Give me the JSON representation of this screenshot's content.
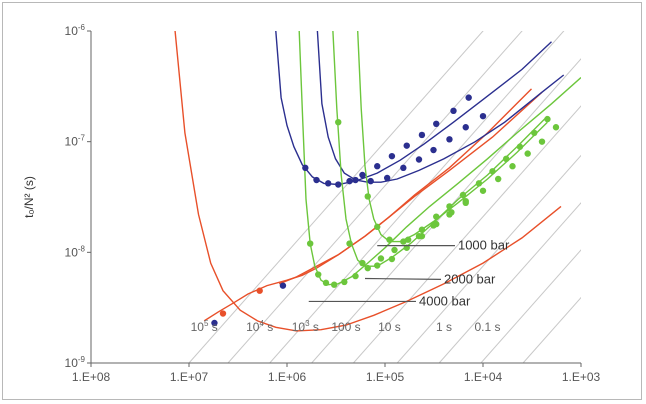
{
  "chart_data": {
    "type": "line",
    "ylabel": "t₀/N² (s)",
    "xlabel": "",
    "x_scale": "log",
    "x_reversed": true,
    "y_scale": "log",
    "xlim": [
      100000000,
      1000
    ],
    "ylim": [
      1e-09,
      1e-06
    ],
    "x_tick_labels": [
      "1.E+08",
      "1.E+07",
      "1.E+06",
      "1.E+05",
      "1.E+04",
      "1.E+03"
    ],
    "x_ticks": [
      100000000,
      10000000,
      1000000,
      100000,
      10000,
      1000
    ],
    "y_ticks": [
      {
        "value": 1e-09,
        "base": "10",
        "exp": "-9"
      },
      {
        "value": 1e-08,
        "base": "10",
        "exp": "-8"
      },
      {
        "value": 1e-07,
        "base": "10",
        "exp": "-7"
      },
      {
        "value": 1e-06,
        "base": "10",
        "exp": "-6"
      }
    ],
    "grid": false,
    "isochrone_labels": [
      {
        "base": "10",
        "exp": "5",
        "unit": " s",
        "x": 7000000,
        "y": 1.95e-09
      },
      {
        "base": "10",
        "exp": "4",
        "unit": " s",
        "x": 1900000,
        "y": 1.95e-09
      },
      {
        "base": "10",
        "exp": "3",
        "unit": " s",
        "x": 650000,
        "y": 1.95e-09
      },
      {
        "base": "",
        "exp": "",
        "unit": "100 s",
        "x": 250000,
        "y": 1.95e-09
      },
      {
        "base": "",
        "exp": "",
        "unit": "10 s",
        "x": 90000,
        "y": 1.95e-09
      },
      {
        "base": "",
        "exp": "",
        "unit": "1 s",
        "x": 25000,
        "y": 1.95e-09
      },
      {
        "base": "",
        "exp": "",
        "unit": "0.1 s",
        "x": 9000,
        "y": 1.95e-09
      }
    ],
    "isochrones_x_at_bottom": [
      10000000,
      4000000,
      1500000,
      560000,
      210000,
      75000,
      28000,
      10500,
      3900
    ],
    "annotations": [
      {
        "text": "1000 bar",
        "x": 18000,
        "y": 1.15e-08,
        "line_from": [
          120000,
          1.15e-08
        ]
      },
      {
        "text": "2000 bar",
        "x": 25000,
        "y": 5.7e-09,
        "line_from": [
          160000,
          5.8e-09
        ]
      },
      {
        "text": "4000 bar",
        "x": 45000,
        "y": 3.6e-09,
        "line_from": [
          600000,
          3.6e-09
        ]
      }
    ],
    "series": [
      {
        "color": "#e8502a",
        "x": [
          14500000,
          11000000,
          8000000,
          6000000,
          4500000,
          3000000,
          2000000,
          1300000,
          800000,
          450000,
          250000,
          130000,
          60000,
          25000,
          10000,
          4000,
          1600
        ],
        "y": [
          1.5e-06,
          1.2e-07,
          2.2e-08,
          8e-09,
          4.5e-09,
          3e-09,
          2.4e-09,
          2.1e-09,
          1.95e-09,
          2e-09,
          2.2e-09,
          2.7e-09,
          3.6e-09,
          5.2e-09,
          8e-09,
          1.35e-08,
          2.6e-08
        ]
      },
      {
        "color": "#e8502a",
        "x": [
          7000000,
          5000000,
          3500000,
          2500000,
          1600000,
          1000000,
          700000,
          500000,
          300000,
          160000,
          90000,
          50000,
          22000,
          8000,
          2500
        ],
        "y": [
          2.4e-09,
          2.9e-09,
          3.5e-09,
          4.2e-09,
          5e-09,
          5.6e-09,
          6.2e-09,
          7.2e-09,
          9.5e-09,
          1.4e-08,
          2.1e-08,
          3.2e-08,
          5.5e-08,
          1.1e-07,
          2.8e-07
        ]
      },
      {
        "color": "#e8502a",
        "x": [
          1200000,
          800000,
          500000,
          300000,
          160000,
          90000,
          50000,
          22000,
          9000,
          3200
        ],
        "y": [
          5.2e-09,
          6e-09,
          7.5e-09,
          9.5e-09,
          1.4e-08,
          2.1e-08,
          3.3e-08,
          5.8e-08,
          1.2e-07,
          3e-07
        ]
      },
      {
        "color": "#2b2f8f",
        "x": [
          1300000,
          1150000,
          1000000,
          850000,
          700000,
          550000,
          420000,
          300000,
          200000,
          120000,
          70000,
          40000,
          20000,
          10000,
          4000,
          2000
        ],
        "y": [
          1e-06,
          2.5e-07,
          1.4e-07,
          9e-08,
          6.2e-08,
          4.8e-08,
          4.2e-08,
          4.1e-08,
          4.4e-08,
          5.2e-08,
          6.8e-08,
          9.5e-08,
          1.5e-07,
          2.4e-07,
          4.5e-07,
          8e-07
        ]
      },
      {
        "color": "#2b2f8f",
        "x": [
          490000,
          440000,
          380000,
          320000,
          260000,
          200000,
          150000,
          110000,
          75000,
          45000,
          25000,
          12000,
          6000,
          2500,
          1500
        ],
        "y": [
          1e-06,
          2.2e-07,
          1.1e-07,
          7e-08,
          5.2e-08,
          4.5e-08,
          4.3e-08,
          4.3e-08,
          4.6e-08,
          5.5e-08,
          7e-08,
          1e-07,
          1.5e-07,
          2.8e-07,
          4e-07
        ]
      },
      {
        "color": "#6cc63c",
        "x": [
          750000,
          690000,
          640000,
          580000,
          520000,
          450000,
          380000,
          300000,
          220000,
          150000,
          100000,
          60000,
          35000,
          18000,
          9000,
          4500,
          2000,
          1000
        ],
        "y": [
          1e-06,
          1.5e-07,
          3e-08,
          1.2e-08,
          7.5e-09,
          5.6e-09,
          5.1e-09,
          5.2e-09,
          6e-09,
          8e-09,
          1.1e-08,
          1.7e-08,
          2.6e-08,
          4.2e-08,
          7e-08,
          1.2e-07,
          2.2e-07,
          3.8e-07
        ]
      },
      {
        "color": "#6cc63c",
        "x": [
          340000,
          310000,
          280000,
          250000,
          220000,
          190000,
          160000,
          120000,
          85000,
          55000,
          33000,
          18000,
          9000,
          4500,
          2200
        ],
        "y": [
          1e-06,
          2e-07,
          5e-08,
          2e-08,
          1.2e-08,
          8.5e-09,
          7.5e-09,
          7.5e-09,
          9e-09,
          1.2e-08,
          1.8e-08,
          3e-08,
          5e-08,
          9e-08,
          1.7e-07
        ]
      },
      {
        "color": "#6cc63c",
        "x": [
          190000,
          175000,
          160000,
          145000,
          130000,
          110000,
          90000,
          70000,
          50000,
          32000,
          18000,
          9000,
          4500,
          2200
        ],
        "y": [
          1e-06,
          2e-07,
          6e-08,
          3e-08,
          2e-08,
          1.45e-08,
          1.25e-08,
          1.25e-08,
          1.45e-08,
          1.9e-08,
          2.8e-08,
          4.6e-08,
          8e-08,
          1.5e-07
        ]
      }
    ],
    "markers": [
      {
        "color": "#2b2f8f",
        "x": [
          5500000,
          1100000,
          650000,
          500000,
          380000,
          300000,
          230000,
          170000,
          120000,
          85000,
          60000,
          42000,
          30000,
          20000,
          14000
        ],
        "y": [
          2.3e-09,
          5e-09,
          5.8e-08,
          4.5e-08,
          4.2e-08,
          4.1e-08,
          4.4e-08,
          5e-08,
          6e-08,
          7.4e-08,
          9.2e-08,
          1.15e-07,
          1.45e-07,
          1.9e-07,
          2.5e-07
        ]
      },
      {
        "color": "#2b2f8f",
        "x": [
          200000,
          140000,
          95000,
          65000,
          45000,
          32000,
          22000,
          15000,
          10000
        ],
        "y": [
          4.5e-08,
          4.4e-08,
          4.7e-08,
          5.8e-08,
          6.9e-08,
          8.4e-08,
          1.05e-07,
          1.35e-07,
          1.7e-07
        ]
      },
      {
        "color": "#e8502a",
        "x": [
          4500000,
          1900000
        ],
        "y": [
          2.8e-09,
          4.5e-09
        ]
      },
      {
        "color": "#6cc63c",
        "x": [
          580000,
          480000,
          400000,
          330000,
          260000,
          200000,
          150000,
          110000,
          80000,
          58000,
          42000,
          30000,
          22000,
          16000,
          11000,
          8000,
          5800,
          4200,
          3000,
          2200
        ],
        "y": [
          1.2e-08,
          6.3e-09,
          5.3e-09,
          5.1e-09,
          5.4e-09,
          6.1e-09,
          7.2e-09,
          8.8e-09,
          1.05e-08,
          1.3e-08,
          1.6e-08,
          2.1e-08,
          2.6e-08,
          3.3e-08,
          4.2e-08,
          5.4e-08,
          7e-08,
          9e-08,
          1.2e-07,
          1.6e-07
        ]
      },
      {
        "color": "#6cc63c",
        "x": [
          300000,
          230000,
          170000,
          120000,
          85000,
          60000,
          42000,
          30000,
          21000,
          15000
        ],
        "y": [
          1.5e-07,
          1.2e-08,
          8e-09,
          7.6e-09,
          8.7e-09,
          1.1e-08,
          1.4e-08,
          1.8e-08,
          2.3e-08,
          2.9e-08
        ]
      },
      {
        "color": "#6cc63c",
        "x": [
          150000,
          120000,
          90000,
          65000,
          45000,
          32000,
          22000,
          15000,
          10000,
          7000,
          5000,
          3500,
          2500,
          1800
        ],
        "y": [
          3.2e-08,
          1.7e-08,
          1.3e-08,
          1.25e-08,
          1.4e-08,
          1.75e-08,
          2.2e-08,
          2.8e-08,
          3.6e-08,
          4.6e-08,
          6e-08,
          7.8e-08,
          1e-07,
          1.35e-07
        ]
      }
    ]
  }
}
